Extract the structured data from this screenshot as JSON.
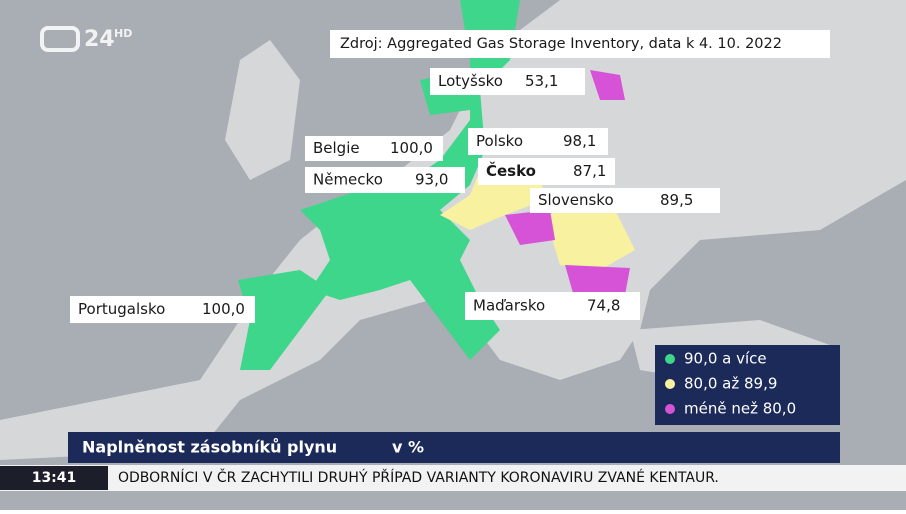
{
  "logo": {
    "channel": "24",
    "quality": "HD"
  },
  "source": "Zdroj: Aggregated Gas Storage Inventory, data k 4. 10. 2022",
  "labels": [
    {
      "country": "Lotyšsko",
      "value": "53,1"
    },
    {
      "country": "Belgie",
      "value": "100,0"
    },
    {
      "country": "Polsko",
      "value": "98,1"
    },
    {
      "country": "Německo",
      "value": "93,0"
    },
    {
      "country": "Česko",
      "value": "87,1"
    },
    {
      "country": "Slovensko",
      "value": "89,5"
    },
    {
      "country": "Maďarsko",
      "value": "74,8"
    },
    {
      "country": "Portugalsko",
      "value": "100,0"
    }
  ],
  "legend": [
    {
      "label": "90,0 a více",
      "color": "#3ed68a"
    },
    {
      "label": "80,0 až 89,9",
      "color": "#f8f1a0"
    },
    {
      "label": "méně než 80,0",
      "color": "#d653d8"
    }
  ],
  "title": {
    "text": "Naplněnost zásobníků plynu",
    "unit": "v %"
  },
  "ticker": {
    "time": "13:41",
    "text": "ODBORNÍCI V ČR ZACHYTILI DRUHÝ PŘÍPAD VARIANTY KORONAVIRU ZVANÉ KENTAUR."
  }
}
